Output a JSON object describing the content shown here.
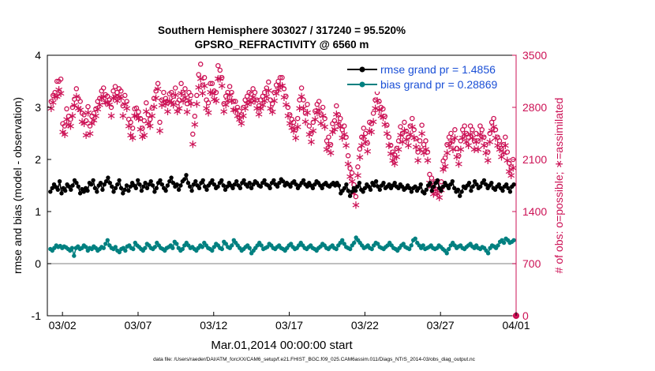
{
  "chart_data": {
    "type": "line",
    "title_line1": "Southern Hemisphere 303027 / 317240 = 95.520%",
    "title_line2": "GPSRO_REFRACTIVITY @ 6560 m",
    "xlabel": "Mar.01,2014 00:00:00 start",
    "ylabel_left": "rmse and bias (model - observation)",
    "ylabel_right": "# of obs: o=possible; ∗=assimilated",
    "footer": "data file: /Users/raeder/DAI/ATM_forcXX/CAM6_setup/f.e21.FHIST_BGC.f09_025.CAM6assim.011/Diags_NTrS_2014-03/obs_diag_output.nc",
    "x_ticks": [
      "03/02",
      "03/07",
      "03/12",
      "03/17",
      "03/22",
      "03/27",
      "04/01"
    ],
    "x_tick_days": [
      1,
      6,
      11,
      16,
      21,
      26,
      31
    ],
    "x_range_days": [
      0,
      31
    ],
    "ylim_left": [
      -1,
      4
    ],
    "left_ticks": [
      "-1",
      "0",
      "1",
      "2",
      "3",
      "4"
    ],
    "ylim_right": [
      0,
      3500
    ],
    "right_ticks": [
      "0",
      "700",
      "1400",
      "2100",
      "2800",
      "3500"
    ],
    "zero_line": 0,
    "colors": {
      "rmse": "#000000",
      "bias": "#008080",
      "obs": "#cc1155",
      "legend_text": "#1a4fd6"
    },
    "legend": [
      {
        "label": "rmse grand pr = 1.4856",
        "series": "rmse"
      },
      {
        "label": "bias grand pr = 0.28869",
        "series": "bias"
      }
    ],
    "rmse": [
      1.38,
      1.45,
      1.52,
      1.47,
      1.42,
      1.58,
      1.35,
      1.45,
      1.4,
      1.52,
      1.48,
      1.42,
      1.5,
      1.6,
      1.55,
      1.48,
      1.35,
      1.43,
      1.38,
      1.45,
      1.4,
      1.55,
      1.52,
      1.6,
      1.45,
      1.38,
      1.5,
      1.55,
      1.42,
      1.52,
      1.58,
      1.65,
      1.55,
      1.48,
      1.38,
      1.45,
      1.52,
      1.6,
      1.45,
      1.35,
      1.42,
      1.5,
      1.4,
      1.48,
      1.55,
      1.5,
      1.45,
      1.6,
      1.52,
      1.4,
      1.48,
      1.55,
      1.45,
      1.52,
      1.58,
      1.5,
      1.38,
      1.45,
      1.55,
      1.6,
      1.52,
      1.45,
      1.4,
      1.5,
      1.58,
      1.65,
      1.55,
      1.48,
      1.52,
      1.42,
      1.5,
      1.58,
      1.62,
      1.7,
      1.55,
      1.48,
      1.4,
      1.52,
      1.58,
      1.5,
      1.45,
      1.55,
      1.6,
      1.48,
      1.42,
      1.5,
      1.55,
      1.6,
      1.52,
      1.45,
      1.48,
      1.55,
      1.6,
      1.5,
      1.42,
      1.48,
      1.55,
      1.5,
      1.45,
      1.52,
      1.58,
      1.5,
      1.45,
      1.55,
      1.6,
      1.52,
      1.48,
      1.55,
      1.45,
      1.52,
      1.58,
      1.55,
      1.5,
      1.48,
      1.55,
      1.6,
      1.52,
      1.5,
      1.45,
      1.55,
      1.6,
      1.52,
      1.48,
      1.55,
      1.62,
      1.58,
      1.5,
      1.55,
      1.52,
      1.48,
      1.55,
      1.58,
      1.52,
      1.45,
      1.5,
      1.55,
      1.6,
      1.52,
      1.48,
      1.55,
      1.5,
      1.45,
      1.52,
      1.58,
      1.55,
      1.5,
      1.45,
      1.52,
      1.55,
      1.5,
      1.48,
      1.52,
      1.55,
      1.5,
      1.55,
      1.5,
      1.35,
      1.4,
      1.45,
      1.52,
      1.4,
      1.3,
      1.38,
      1.45,
      1.4,
      1.48,
      1.55,
      1.42,
      1.38,
      1.45,
      1.52,
      1.48,
      1.42,
      1.55,
      1.5,
      1.58,
      1.48,
      1.42,
      1.5,
      1.55,
      1.45,
      1.48,
      1.52,
      1.45,
      1.5,
      1.55,
      1.48,
      1.45,
      1.52,
      1.48,
      1.42,
      1.45,
      1.5,
      1.45,
      1.38,
      1.45,
      1.48,
      1.4,
      1.45,
      1.52,
      1.38,
      1.35,
      1.42,
      1.5,
      1.55,
      1.4,
      1.48,
      1.55,
      1.6,
      1.45,
      1.4,
      1.48,
      1.55,
      1.5,
      1.45,
      1.52,
      1.58,
      1.45,
      1.38,
      1.42,
      1.3,
      1.38,
      1.48,
      1.45,
      1.5,
      1.55,
      1.4,
      1.48,
      1.58,
      1.52,
      1.45,
      1.48,
      1.55,
      1.6,
      1.52,
      1.45,
      1.5,
      1.55,
      1.45,
      1.42,
      1.48,
      1.52,
      1.45,
      1.4,
      1.48,
      1.52,
      1.45,
      1.38,
      1.48,
      1.52
    ],
    "bias": [
      0.28,
      0.25,
      0.3,
      0.35,
      0.32,
      0.34,
      0.3,
      0.33,
      0.31,
      0.28,
      0.25,
      0.3,
      0.15,
      0.3,
      0.33,
      0.28,
      0.3,
      0.35,
      0.32,
      0.25,
      0.3,
      0.28,
      0.33,
      0.3,
      0.25,
      0.28,
      0.32,
      0.3,
      0.38,
      0.45,
      0.35,
      0.3,
      0.28,
      0.32,
      0.25,
      0.22,
      0.28,
      0.3,
      0.25,
      0.33,
      0.35,
      0.3,
      0.28,
      0.4,
      0.35,
      0.32,
      0.28,
      0.25,
      0.3,
      0.38,
      0.35,
      0.3,
      0.28,
      0.32,
      0.4,
      0.35,
      0.3,
      0.28,
      0.25,
      0.3,
      0.32,
      0.35,
      0.3,
      0.42,
      0.38,
      0.3,
      0.25,
      0.28,
      0.35,
      0.4,
      0.35,
      0.3,
      0.32,
      0.28,
      0.25,
      0.3,
      0.35,
      0.32,
      0.4,
      0.35,
      0.3,
      0.28,
      0.25,
      0.32,
      0.38,
      0.35,
      0.3,
      0.28,
      0.42,
      0.38,
      0.32,
      0.3,
      0.35,
      0.45,
      0.4,
      0.35,
      0.3,
      0.25,
      0.28,
      0.32,
      0.35,
      0.3,
      0.2,
      0.25,
      0.3,
      0.35,
      0.4,
      0.35,
      0.28,
      0.3,
      0.32,
      0.38,
      0.35,
      0.3,
      0.28,
      0.32,
      0.35,
      0.3,
      0.28,
      0.25,
      0.3,
      0.35,
      0.38,
      0.32,
      0.28,
      0.3,
      0.35,
      0.4,
      0.35,
      0.3,
      0.28,
      0.32,
      0.35,
      0.3,
      0.28,
      0.25,
      0.3,
      0.33,
      0.38,
      0.35,
      0.3,
      0.28,
      0.32,
      0.35,
      0.3,
      0.28,
      0.35,
      0.4,
      0.45,
      0.38,
      0.32,
      0.3,
      0.28,
      0.35,
      0.4,
      0.5,
      0.45,
      0.4,
      0.35,
      0.3,
      0.32,
      0.35,
      0.3,
      0.28,
      0.35,
      0.4,
      0.38,
      0.32,
      0.3,
      0.28,
      0.32,
      0.35,
      0.4,
      0.35,
      0.3,
      0.28,
      0.25,
      0.3,
      0.35,
      0.38,
      0.32,
      0.3,
      0.28,
      0.35,
      0.45,
      0.48,
      0.4,
      0.35,
      0.3,
      0.35,
      0.28,
      0.3,
      0.32,
      0.35,
      0.3,
      0.28,
      0.3,
      0.35,
      0.32,
      0.28,
      0.25,
      0.2,
      0.28,
      0.35,
      0.4,
      0.35,
      0.3,
      0.33,
      0.35,
      0.3,
      0.28,
      0.32,
      0.35,
      0.38,
      0.33,
      0.3,
      0.35,
      0.3,
      0.28,
      0.32,
      0.3,
      0.25,
      0.2,
      0.3,
      0.35,
      0.33,
      0.3,
      0.35,
      0.42,
      0.45,
      0.4,
      0.48,
      0.45,
      0.4,
      0.42,
      0.45
    ],
    "possible": [
      2880,
      2960,
      3000,
      3150,
      3150,
      3180,
      2580,
      2550,
      2780,
      2680,
      2640,
      2800,
      2910,
      3050,
      2920,
      2880,
      2720,
      2700,
      2620,
      2810,
      2550,
      2680,
      2720,
      2780,
      2880,
      2920,
      3020,
      3060,
      2970,
      2950,
      2900,
      2800,
      3020,
      3080,
      3000,
      3050,
      3020,
      2820,
      2960,
      2880,
      2640,
      2600,
      2520,
      2780,
      2790,
      2740,
      2650,
      2520,
      2620,
      2860,
      2700,
      2640,
      2790,
      2920,
      3020,
      3120,
      2600,
      2900,
      3000,
      2920,
      2860,
      2980,
      3000,
      2950,
      3060,
      2860,
      2900,
      3120,
      3000,
      3050,
      2850,
      3000,
      2960,
      2440,
      2680,
      2960,
      3240,
      3380,
      3100,
      3200,
      2900,
      2860,
      3120,
      3120,
      3020,
      3000,
      3360,
      3300,
      3200,
      2850,
      2950,
      3000,
      3080,
      3000,
      2880,
      2880,
      2800,
      2750,
      2700,
      2800,
      2900,
      2950,
      3000,
      2980,
      3050,
      3000,
      2900,
      2820,
      2900,
      2950,
      3000,
      3060,
      3140,
      2900,
      2850,
      3000,
      3100,
      3150,
      3200,
      3200,
      3050,
      2950,
      2800,
      2700,
      2640,
      2600,
      2500,
      2650,
      2900,
      3060,
      2900,
      2720,
      2840,
      2550,
      2450,
      2600,
      2750,
      2840,
      2880,
      2700,
      2800,
      2650,
      2350,
      2400,
      2300,
      2580,
      2620,
      2820,
      2700,
      2650,
      2500,
      2550,
      2400,
      2150,
      1980,
      1920,
      1760,
      1600,
      2000,
      2240,
      2400,
      2520,
      2450,
      2320,
      2600,
      2580,
      2720,
      2900,
      3000,
      2880,
      2800,
      2780,
      2680,
      2560,
      2400,
      2290,
      2200,
      2160,
      2250,
      2350,
      2540,
      2450,
      2600,
      2480,
      2400,
      2550,
      2650,
      2500,
      2380,
      2200,
      2350,
      2560,
      2300,
      2350,
      2200,
      1900,
      1850,
      1750,
      1800,
      1750,
      1700,
      1800,
      2080,
      2120,
      2300,
      2400,
      2450,
      2350,
      2500,
      2250,
      2150,
      2350,
      2500,
      2550,
      2450,
      2400,
      2550,
      2500,
      2350,
      2450,
      2350,
      2550,
      2500,
      2400,
      2300,
      2200,
      2450,
      2600,
      2650,
      2500,
      2400,
      2350,
      2250,
      2300,
      2400,
      2200,
      2050,
      2000,
      2100
    ],
    "assimilated": [
      2800,
      2880,
      2960,
      2960,
      3050,
      3000,
      2480,
      2450,
      2650,
      2580,
      2560,
      2700,
      2840,
      2960,
      2800,
      2780,
      2620,
      2600,
      2440,
      2740,
      2460,
      2600,
      2640,
      2700,
      2790,
      2850,
      2940,
      2960,
      2880,
      2880,
      2850,
      2700,
      2940,
      2960,
      2900,
      2960,
      2940,
      2700,
      2860,
      2800,
      2560,
      2440,
      2400,
      2700,
      2700,
      2660,
      2520,
      2420,
      2440,
      2760,
      2600,
      2560,
      2700,
      2820,
      2940,
      3060,
      2500,
      2840,
      2900,
      2860,
      2760,
      2900,
      2880,
      2850,
      2980,
      2760,
      2800,
      3000,
      2900,
      2950,
      2750,
      2900,
      2860,
      2320,
      2580,
      2860,
      3080,
      3200,
      3000,
      3100,
      2800,
      2740,
      3020,
      3000,
      2920,
      2900,
      3200,
      3200,
      3100,
      2760,
      2850,
      2900,
      2980,
      2900,
      2780,
      2780,
      2700,
      2650,
      2600,
      2700,
      2800,
      2860,
      2900,
      2880,
      2950,
      2900,
      2800,
      2720,
      2800,
      2850,
      2900,
      2960,
      3040,
      2800,
      2750,
      2900,
      3000,
      3050,
      3100,
      3100,
      2950,
      2850,
      2700,
      2600,
      2540,
      2500,
      2400,
      2550,
      2800,
      2960,
      2800,
      2620,
      2740,
      2450,
      2350,
      2500,
      2650,
      2740,
      2780,
      2600,
      2700,
      2550,
      2250,
      2300,
      2200,
      2480,
      2520,
      2720,
      2600,
      2550,
      2400,
      2450,
      2300,
      2050,
      1880,
      1820,
      1660,
      1500,
      1900,
      2140,
      2300,
      2420,
      2350,
      2220,
      2500,
      2480,
      2620,
      2800,
      2900,
      2780,
      2700,
      2680,
      2580,
      2460,
      2300,
      2190,
      2100,
      2060,
      2150,
      2250,
      2440,
      2350,
      2500,
      2380,
      2300,
      2450,
      2550,
      2400,
      2280,
      2100,
      2250,
      2460,
      2200,
      2250,
      2100,
      1800,
      1750,
      1650,
      1700,
      1650,
      1600,
      1700,
      1980,
      2020,
      2200,
      2300,
      2350,
      2250,
      2400,
      2150,
      2050,
      2250,
      2400,
      2450,
      2350,
      2300,
      2450,
      2400,
      2250,
      2350,
      2250,
      2450,
      2400,
      2300,
      2200,
      2100,
      2350,
      2500,
      2550,
      2400,
      2300,
      2250,
      2150,
      2200,
      2300,
      2100,
      1950,
      1900,
      2000
    ],
    "final_point": 0
  }
}
